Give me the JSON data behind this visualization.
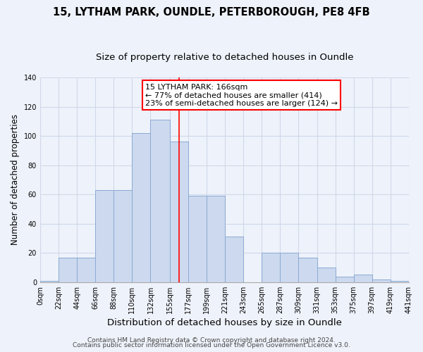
{
  "title1": "15, LYTHAM PARK, OUNDLE, PETERBOROUGH, PE8 4FB",
  "title2": "Size of property relative to detached houses in Oundle",
  "xlabel": "Distribution of detached houses by size in Oundle",
  "ylabel": "Number of detached properties",
  "bin_edges": [
    0,
    22,
    44,
    66,
    88,
    110,
    132,
    155,
    177,
    199,
    221,
    243,
    265,
    287,
    309,
    331,
    353,
    375,
    397,
    419,
    441
  ],
  "bin_counts": [
    1,
    17,
    17,
    63,
    63,
    102,
    111,
    96,
    59,
    59,
    31,
    0,
    20,
    20,
    17,
    10,
    4,
    5,
    2,
    1
  ],
  "bar_color": "#ccd9ee",
  "bar_edge_color": "#8baad4",
  "property_line_x": 166,
  "property_line_color": "red",
  "annotation_box_text": "15 LYTHAM PARK: 166sqm\n← 77% of detached houses are smaller (414)\n23% of semi-detached houses are larger (124) →",
  "tick_labels": [
    "0sqm",
    "22sqm",
    "44sqm",
    "66sqm",
    "88sqm",
    "110sqm",
    "132sqm",
    "155sqm",
    "177sqm",
    "199sqm",
    "221sqm",
    "243sqm",
    "265sqm",
    "287sqm",
    "309sqm",
    "331sqm",
    "353sqm",
    "375sqm",
    "397sqm",
    "419sqm",
    "441sqm"
  ],
  "ylim": [
    0,
    140
  ],
  "yticks": [
    0,
    20,
    40,
    60,
    80,
    100,
    120,
    140
  ],
  "footer1": "Contains HM Land Registry data © Crown copyright and database right 2024.",
  "footer2": "Contains public sector information licensed under the Open Government Licence v3.0.",
  "background_color": "#eef2fa",
  "grid_color": "#d0d8e8",
  "title1_fontsize": 10.5,
  "title2_fontsize": 9.5,
  "xlabel_fontsize": 9.5,
  "ylabel_fontsize": 8.5,
  "tick_fontsize": 7,
  "annotation_fontsize": 8,
  "footer_fontsize": 6.5
}
